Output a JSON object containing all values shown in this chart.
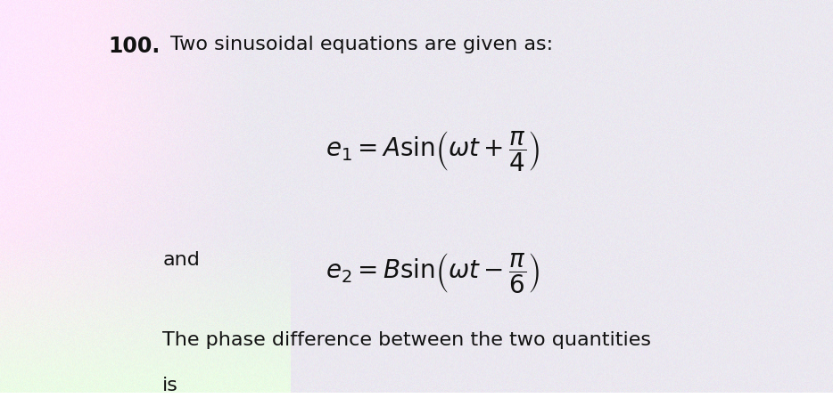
{
  "text_color": "#111111",
  "number": "100.",
  "line1": "Two sinusoidal equations are given as:",
  "and_text": "and",
  "line_last1": "The phase difference between the two quantities",
  "line_last2": "is",
  "fig_width": 9.34,
  "fig_height": 4.47,
  "dpi": 100,
  "font_size_main": 16,
  "font_size_eq": 20,
  "bg_base": "#e8e6ee"
}
